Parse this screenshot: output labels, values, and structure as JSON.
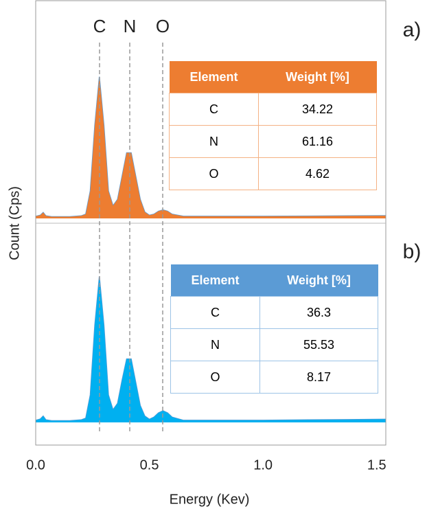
{
  "chart_data": [
    {
      "type": "area",
      "panel_label": "a)",
      "element_labels": [
        "C",
        "N",
        "O"
      ],
      "ylabel": "Count (Cps)",
      "x": [
        0,
        0.02,
        0.033,
        0.045,
        0.07,
        0.15,
        0.2,
        0.22,
        0.24,
        0.26,
        0.28,
        0.3,
        0.32,
        0.34,
        0.36,
        0.38,
        0.4,
        0.42,
        0.44,
        0.46,
        0.48,
        0.5,
        0.52,
        0.54,
        0.56,
        0.58,
        0.6,
        0.65,
        0.8,
        1.0,
        1.2,
        1.54
      ],
      "values": [
        1,
        1.5,
        2.8,
        1.2,
        0.8,
        0.8,
        1.2,
        2,
        13,
        44,
        67,
        44,
        13,
        6,
        9,
        20,
        31,
        31,
        20,
        9,
        3,
        1.5,
        2,
        3.4,
        4,
        3.4,
        2,
        1,
        1,
        1,
        1.1,
        1.3
      ],
      "color": "#ed7d31",
      "line_color": "#5b9bd5",
      "xlim": [
        0,
        1.54
      ],
      "ylim": [
        0,
        100
      ],
      "table": {
        "header_color": "#ed7d31",
        "border_color": "#f4b183",
        "columns": [
          "Element",
          "Weight [%]"
        ],
        "rows": [
          [
            "C",
            "34.22"
          ],
          [
            "N",
            "61.16"
          ],
          [
            "O",
            "4.62"
          ]
        ]
      }
    },
    {
      "type": "area",
      "panel_label": "b)",
      "xlabel": "Energy (Kev)",
      "x": [
        0,
        0.02,
        0.033,
        0.045,
        0.07,
        0.15,
        0.2,
        0.22,
        0.24,
        0.26,
        0.28,
        0.3,
        0.32,
        0.34,
        0.36,
        0.38,
        0.4,
        0.42,
        0.44,
        0.46,
        0.48,
        0.5,
        0.52,
        0.54,
        0.56,
        0.58,
        0.6,
        0.65,
        0.8,
        1.0,
        1.2,
        1.54
      ],
      "values": [
        1,
        1.6,
        3,
        1.2,
        0.8,
        0.8,
        1.2,
        2,
        13,
        46,
        69,
        46,
        13,
        6,
        9,
        20,
        30,
        30,
        19,
        8,
        3,
        1.5,
        2.5,
        4.5,
        5.5,
        4.5,
        2.5,
        1,
        1,
        1,
        1.2,
        1.5
      ],
      "color": "#00b0f0",
      "line_color": "#5b9bd5",
      "xlim": [
        0,
        1.54
      ],
      "ylim": [
        0,
        100
      ],
      "xticks": [
        {
          "value": 0,
          "label": "0.0"
        },
        0.5,
        {
          "value": 1,
          "label": "1.0"
        },
        1.5
      ],
      "table": {
        "header_color": "#5b9bd5",
        "border_color": "#9dc3e6",
        "columns": [
          "Element",
          "Weight [%]"
        ],
        "rows": [
          [
            "C",
            "36.3"
          ],
          [
            "N",
            "55.53"
          ],
          [
            "O",
            "8.17"
          ]
        ]
      }
    }
  ]
}
